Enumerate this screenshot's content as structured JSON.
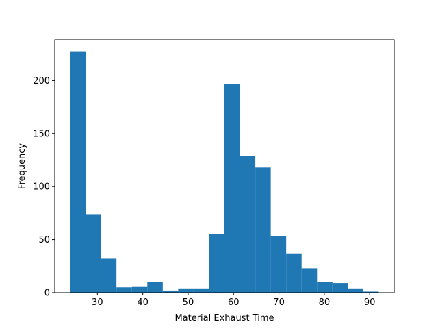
{
  "chart_data": {
    "type": "bar",
    "subtype": "histogram",
    "title": "",
    "xlabel": "Material Exhaust Time",
    "ylabel": "Frequency",
    "bar_color": "#1f77b4",
    "bins": [
      {
        "x0": 24.0,
        "x1": 27.4,
        "count": 227
      },
      {
        "x0": 27.4,
        "x1": 30.8,
        "count": 74
      },
      {
        "x0": 30.8,
        "x1": 34.2,
        "count": 32
      },
      {
        "x0": 34.2,
        "x1": 37.6,
        "count": 5
      },
      {
        "x0": 37.6,
        "x1": 41.0,
        "count": 6
      },
      {
        "x0": 41.0,
        "x1": 44.4,
        "count": 10
      },
      {
        "x0": 44.4,
        "x1": 47.8,
        "count": 2
      },
      {
        "x0": 47.8,
        "x1": 51.2,
        "count": 4
      },
      {
        "x0": 51.2,
        "x1": 54.6,
        "count": 4
      },
      {
        "x0": 54.6,
        "x1": 58.0,
        "count": 55
      },
      {
        "x0": 58.0,
        "x1": 61.4,
        "count": 197
      },
      {
        "x0": 61.4,
        "x1": 64.8,
        "count": 129
      },
      {
        "x0": 64.8,
        "x1": 68.2,
        "count": 118
      },
      {
        "x0": 68.2,
        "x1": 71.6,
        "count": 53
      },
      {
        "x0": 71.6,
        "x1": 75.0,
        "count": 37
      },
      {
        "x0": 75.0,
        "x1": 78.4,
        "count": 23
      },
      {
        "x0": 78.4,
        "x1": 81.8,
        "count": 10
      },
      {
        "x0": 81.8,
        "x1": 85.2,
        "count": 9
      },
      {
        "x0": 85.2,
        "x1": 88.6,
        "count": 4
      },
      {
        "x0": 88.6,
        "x1": 92.0,
        "count": 1
      }
    ],
    "xlim": [
      20.6,
      95.4
    ],
    "ylim": [
      0,
      238.35
    ],
    "xticks": [
      30,
      40,
      50,
      60,
      70,
      80,
      90
    ],
    "yticks": [
      0,
      50,
      100,
      150,
      200
    ],
    "grid": false,
    "legend": "none"
  }
}
